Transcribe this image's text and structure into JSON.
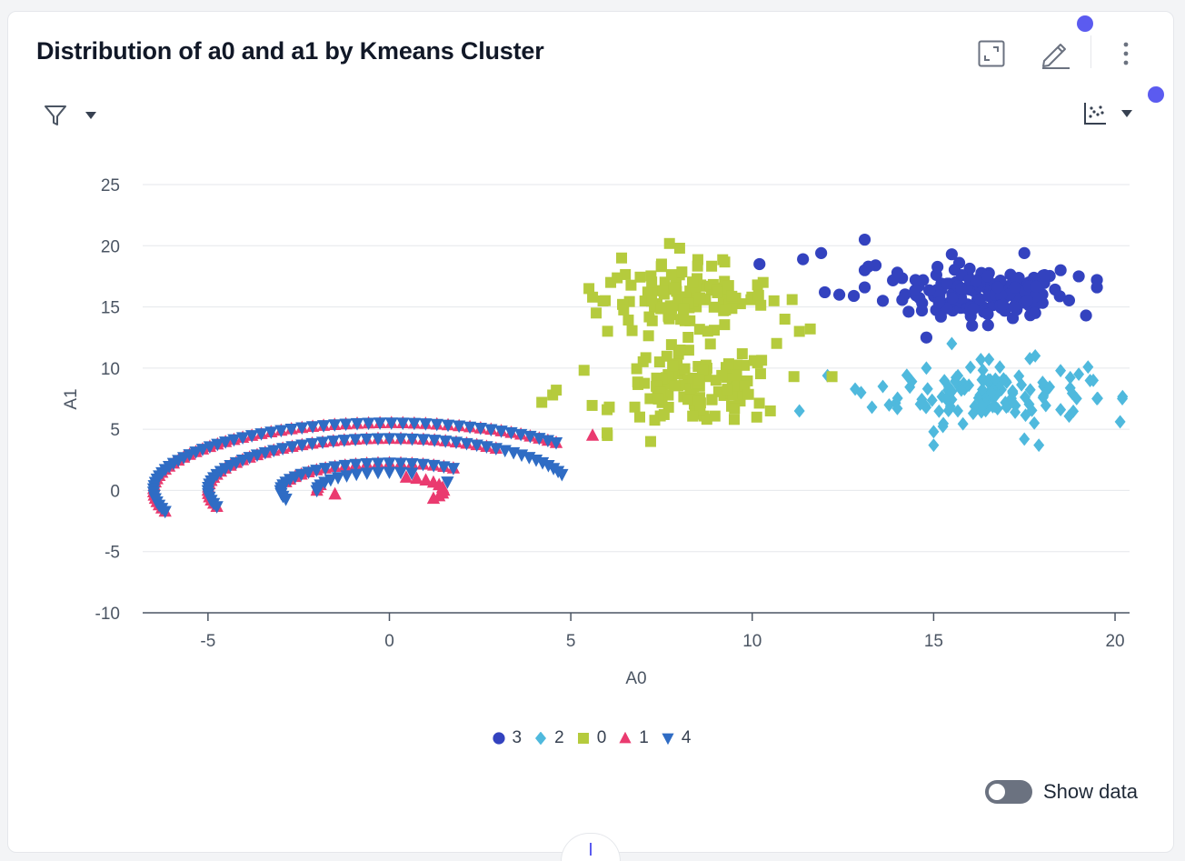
{
  "header": {
    "title": "Distribution of a0 and a1 by Kmeans Cluster"
  },
  "toolbar": {
    "expand_icon": "expand-icon",
    "edit_icon": "pencil-icon",
    "more_icon": "more-vertical-icon",
    "filter_icon": "filter-icon",
    "chart_type_icon": "scatter-chart-icon"
  },
  "footer": {
    "show_data_label": "Show data",
    "show_data_on": false
  },
  "colors": {
    "accent": "#5b5bf0",
    "cluster_3": "#3342bf",
    "cluster_2": "#4fb9dd",
    "cluster_0": "#b5cb3d",
    "cluster_1": "#ea3a6f",
    "cluster_4": "#2f6cc4"
  },
  "chart_data": {
    "type": "scatter",
    "title": "Distribution of a0 and a1 by Kmeans Cluster",
    "xlabel": "A0",
    "ylabel": "A1",
    "xlim": [
      -6.8,
      20.4
    ],
    "ylim": [
      -10,
      25
    ],
    "xticks": [
      -5,
      0,
      5,
      10,
      15,
      20
    ],
    "yticks": [
      25,
      20,
      15,
      10,
      5,
      0,
      -5,
      -10
    ],
    "grid": true,
    "legend_position": "bottom",
    "series": [
      {
        "name": "3",
        "marker": "circle",
        "color": "#3342bf",
        "blobs": [
          {
            "cx": 16.4,
            "cy": 16.1,
            "sx": 1.1,
            "sy": 1.0,
            "n": 140
          }
        ],
        "points": [
          [
            10.2,
            18.5
          ],
          [
            11.4,
            18.9
          ],
          [
            11.9,
            19.4
          ],
          [
            12.0,
            16.2
          ],
          [
            12.4,
            16.0
          ],
          [
            12.8,
            15.9
          ],
          [
            13.1,
            20.5
          ],
          [
            13.1,
            18.0
          ],
          [
            13.4,
            18.4
          ],
          [
            13.1,
            16.6
          ],
          [
            13.6,
            15.5
          ],
          [
            13.2,
            18.3
          ],
          [
            14.0,
            17.8
          ],
          [
            14.5,
            17.2
          ],
          [
            14.8,
            12.5
          ],
          [
            15.2,
            14.2
          ],
          [
            15.5,
            19.3
          ],
          [
            17.5,
            19.4
          ],
          [
            18.5,
            18.0
          ],
          [
            19.0,
            17.5
          ],
          [
            19.5,
            17.2
          ],
          [
            19.5,
            16.6
          ],
          [
            19.2,
            14.3
          ],
          [
            17.8,
            14.5
          ],
          [
            16.5,
            13.5
          ]
        ]
      },
      {
        "name": "2",
        "marker": "diamond",
        "color": "#4fb9dd",
        "blobs": [
          {
            "cx": 16.6,
            "cy": 8.0,
            "sx": 1.3,
            "sy": 1.2,
            "n": 120
          }
        ],
        "points": [
          [
            11.3,
            6.5
          ],
          [
            13.0,
            8.0
          ],
          [
            13.3,
            6.8
          ],
          [
            13.6,
            8.5
          ],
          [
            14.0,
            6.7
          ],
          [
            14.4,
            8.9
          ],
          [
            14.8,
            10.0
          ],
          [
            15.0,
            4.8
          ],
          [
            15.0,
            3.7
          ],
          [
            15.5,
            12.0
          ],
          [
            17.5,
            4.2
          ],
          [
            17.9,
            3.7
          ],
          [
            19.0,
            9.5
          ],
          [
            19.4,
            9.0
          ],
          [
            19.5,
            7.5
          ],
          [
            20.2,
            7.5
          ],
          [
            18.5,
            6.6
          ],
          [
            17.8,
            11.0
          ],
          [
            16.3,
            10.7
          ]
        ]
      },
      {
        "name": "0",
        "marker": "square",
        "color": "#b5cb3d",
        "blobs": [
          {
            "cx": 8.2,
            "cy": 15.6,
            "sx": 1.1,
            "sy": 1.4,
            "n": 110
          },
          {
            "cx": 8.5,
            "cy": 8.3,
            "sx": 1.1,
            "sy": 1.5,
            "n": 110
          }
        ],
        "points": [
          [
            5.6,
            15.8
          ],
          [
            5.7,
            14.5
          ],
          [
            6.4,
            19.0
          ],
          [
            6.1,
            17.0
          ],
          [
            5.5,
            16.5
          ],
          [
            10.9,
            14.0
          ],
          [
            11.3,
            13.0
          ],
          [
            11.6,
            13.2
          ],
          [
            12.2,
            9.3
          ],
          [
            10.5,
            6.5
          ],
          [
            6.0,
            6.6
          ],
          [
            6.0,
            4.7
          ],
          [
            4.5,
            7.8
          ],
          [
            4.6,
            8.2
          ],
          [
            4.2,
            7.2
          ],
          [
            6.9,
            6.0
          ],
          [
            7.2,
            4.0
          ],
          [
            8.0,
            19.8
          ],
          [
            7.5,
            18.5
          ],
          [
            10.6,
            15.5
          ],
          [
            10.3,
            17.0
          ],
          [
            11.1,
            15.6
          ]
        ]
      },
      {
        "name": "1",
        "marker": "triangle",
        "color": "#ea3a6f",
        "spiral_arcs": [
          {
            "r": 2.0,
            "from": 3.8,
            "to": 4.0
          },
          {
            "r": 6.5,
            "from": 2.5,
            "to": 4.2
          },
          {
            "r": 3.0,
            "from": 3.8,
            "to": 2.6
          },
          {
            "r": 5.0,
            "from": 2.6,
            "to": 4.2
          },
          {
            "r": 1.5,
            "from": 1.6,
            "to": 2.8
          }
        ],
        "points": [
          [
            5.6,
            4.5
          ],
          [
            -1.5,
            -0.3
          ]
        ]
      },
      {
        "name": "4",
        "marker": "triangle-down",
        "color": "#2f6cc4",
        "spiral_arcs": [
          {
            "r": 2.0,
            "from": 2.8,
            "to": 4.0
          },
          {
            "r": 3.0,
            "from": 2.6,
            "to": 4.2
          },
          {
            "r": 5.0,
            "from": 2.2,
            "to": 4.2
          },
          {
            "r": 6.5,
            "from": 2.5,
            "to": 4.2
          }
        ],
        "points": [
          [
            1.6,
            0.7
          ]
        ]
      }
    ]
  }
}
